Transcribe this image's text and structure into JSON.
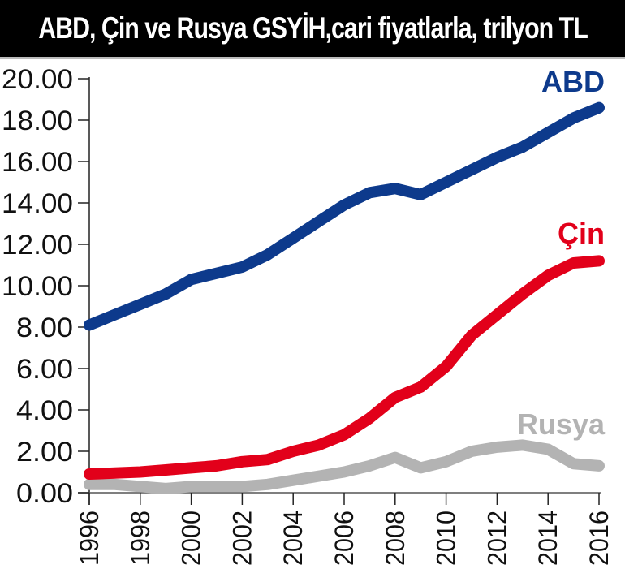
{
  "title": "ABD, Çin ve Rusya GSYİH,cari fiyatlarla, trilyon TL",
  "chart_data": {
    "type": "line",
    "title": "ABD, Çin ve Rusya GSYİH,cari fiyatlarla, trilyon TL",
    "xlabel": "",
    "ylabel": "",
    "ylim": [
      0,
      20
    ],
    "xlim": [
      1996,
      2016
    ],
    "grid": false,
    "legend_position": "inline labels at right end of lines",
    "y_ticks": [
      "0.00",
      "2.00",
      "4.00",
      "6.00",
      "8.00",
      "10.00",
      "12.00",
      "14.00",
      "16.00",
      "18.00",
      "20.00"
    ],
    "x_ticks": [
      "1996",
      "1998",
      "2000",
      "2002",
      "2004",
      "2006",
      "2008",
      "2010",
      "2012",
      "2014",
      "2016"
    ],
    "x": [
      1996,
      1997,
      1998,
      1999,
      2000,
      2001,
      2002,
      2003,
      2004,
      2005,
      2006,
      2007,
      2008,
      2009,
      2010,
      2011,
      2012,
      2013,
      2014,
      2015,
      2016
    ],
    "series": [
      {
        "name": "ABD",
        "color": "#0d3a8c",
        "values": [
          8.1,
          8.6,
          9.1,
          9.6,
          10.3,
          10.6,
          10.9,
          11.5,
          12.3,
          13.1,
          13.9,
          14.5,
          14.7,
          14.4,
          15.0,
          15.6,
          16.2,
          16.7,
          17.4,
          18.1,
          18.6
        ]
      },
      {
        "name": "Çin",
        "color": "#e2001a",
        "values": [
          0.9,
          0.95,
          1.0,
          1.1,
          1.2,
          1.3,
          1.5,
          1.6,
          2.0,
          2.3,
          2.8,
          3.6,
          4.6,
          5.1,
          6.1,
          7.6,
          8.6,
          9.6,
          10.5,
          11.1,
          11.2
        ]
      },
      {
        "name": "Rusya",
        "color": "#b3b3b3",
        "values": [
          0.4,
          0.4,
          0.3,
          0.2,
          0.3,
          0.3,
          0.3,
          0.4,
          0.6,
          0.8,
          1.0,
          1.3,
          1.7,
          1.2,
          1.5,
          2.0,
          2.2,
          2.3,
          2.1,
          1.4,
          1.3
        ]
      }
    ]
  }
}
